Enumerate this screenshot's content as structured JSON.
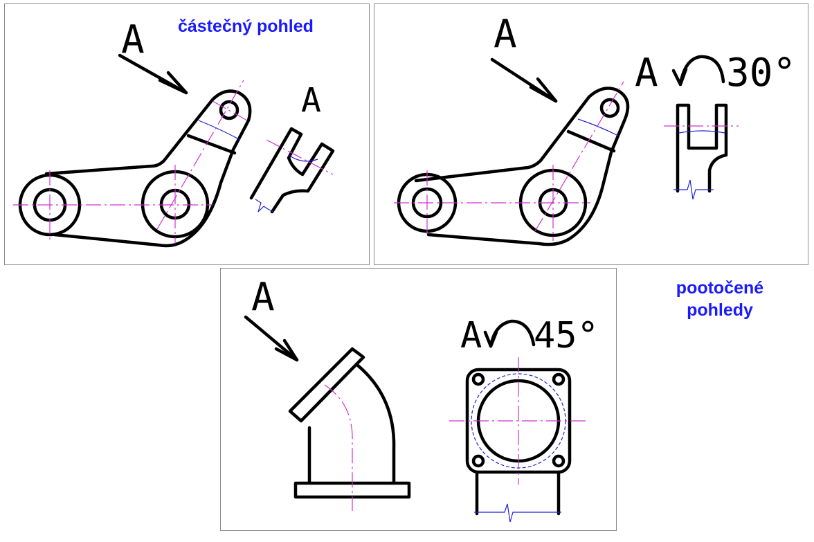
{
  "labels": {
    "partial_view": "částečný pohled",
    "rotated_views": "pootočené pohledy"
  },
  "panel1": {
    "arrow_letter": "A",
    "view_letter": "A"
  },
  "panel2": {
    "arrow_letter": "A",
    "view_letter": "A",
    "rotation": "30°"
  },
  "panel3": {
    "arrow_letter": "A",
    "view_letter": "A",
    "rotation": "45°"
  },
  "colors": {
    "label_blue": "#1a1aff",
    "center_line": "#d030d0",
    "thin_line": "#2020d0"
  }
}
